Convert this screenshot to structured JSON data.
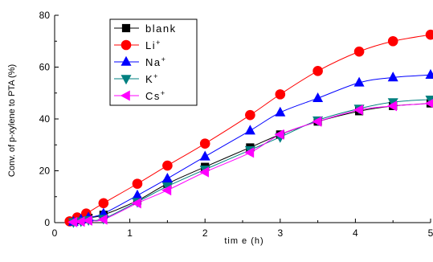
{
  "chart_data": {
    "type": "line",
    "title": "",
    "xlabel": "tim e  (h)",
    "ylabel": "Conv. of p-xylene to PTA (%)",
    "xlim": [
      0,
      5
    ],
    "ylim": [
      0,
      80
    ],
    "x_ticks": [
      "0",
      "1",
      "2",
      "3",
      "4",
      "5"
    ],
    "y_ticks": [
      "0",
      "20",
      "40",
      "60",
      "80"
    ],
    "grid": false,
    "legend_position": "top-left",
    "series": [
      {
        "name": "blank",
        "sup": "",
        "color": "#000000",
        "marker": "square",
        "x": [
          0.25,
          0.35,
          0.45,
          0.65,
          1.1,
          1.5,
          2.0,
          2.6,
          3.0,
          3.5,
          4.05,
          4.5,
          5.0
        ],
        "y": [
          0.3,
          1.0,
          1.8,
          3.0,
          8.5,
          15.0,
          21.5,
          29.0,
          34.0,
          39.0,
          43.0,
          45.0,
          46.0
        ]
      },
      {
        "name": "Li",
        "sup": "+",
        "color": "#ff0000",
        "marker": "circle",
        "x": [
          0.2,
          0.3,
          0.42,
          0.65,
          1.1,
          1.5,
          2.0,
          2.6,
          3.0,
          3.5,
          4.05,
          4.5,
          5.0
        ],
        "y": [
          0.5,
          2.0,
          3.5,
          7.5,
          15.0,
          22.0,
          30.5,
          41.5,
          49.5,
          58.5,
          66.0,
          70.0,
          72.5
        ]
      },
      {
        "name": "Na",
        "sup": "+",
        "color": "#0000ff",
        "marker": "triangle-up",
        "x": [
          0.25,
          0.35,
          0.45,
          0.65,
          1.1,
          1.5,
          2.0,
          2.6,
          3.0,
          3.5,
          4.05,
          4.5,
          5.0
        ],
        "y": [
          0.3,
          1.2,
          2.0,
          3.5,
          10.5,
          17.0,
          25.5,
          35.5,
          42.5,
          48.0,
          54.0,
          56.0,
          57.0
        ]
      },
      {
        "name": "K",
        "sup": "+",
        "color": "#008080",
        "marker": "triangle-down",
        "x": [
          0.25,
          0.35,
          0.45,
          0.65,
          1.1,
          1.5,
          2.0,
          2.6,
          3.0,
          3.5,
          4.05,
          4.5,
          5.0
        ],
        "y": [
          0.2,
          0.5,
          1.0,
          1.5,
          8.0,
          14.0,
          20.5,
          28.0,
          33.0,
          39.5,
          44.0,
          46.5,
          47.5
        ]
      },
      {
        "name": "Cs",
        "sup": "+",
        "color": "#ff00ff",
        "marker": "triangle-left",
        "x": [
          0.25,
          0.35,
          0.45,
          0.65,
          1.1,
          1.5,
          2.0,
          2.6,
          3.0,
          3.5,
          4.05,
          4.5,
          5.0
        ],
        "y": [
          0.2,
          0.4,
          0.8,
          1.2,
          7.5,
          12.5,
          19.5,
          27.0,
          34.0,
          39.0,
          43.5,
          45.0,
          46.0
        ]
      }
    ]
  }
}
